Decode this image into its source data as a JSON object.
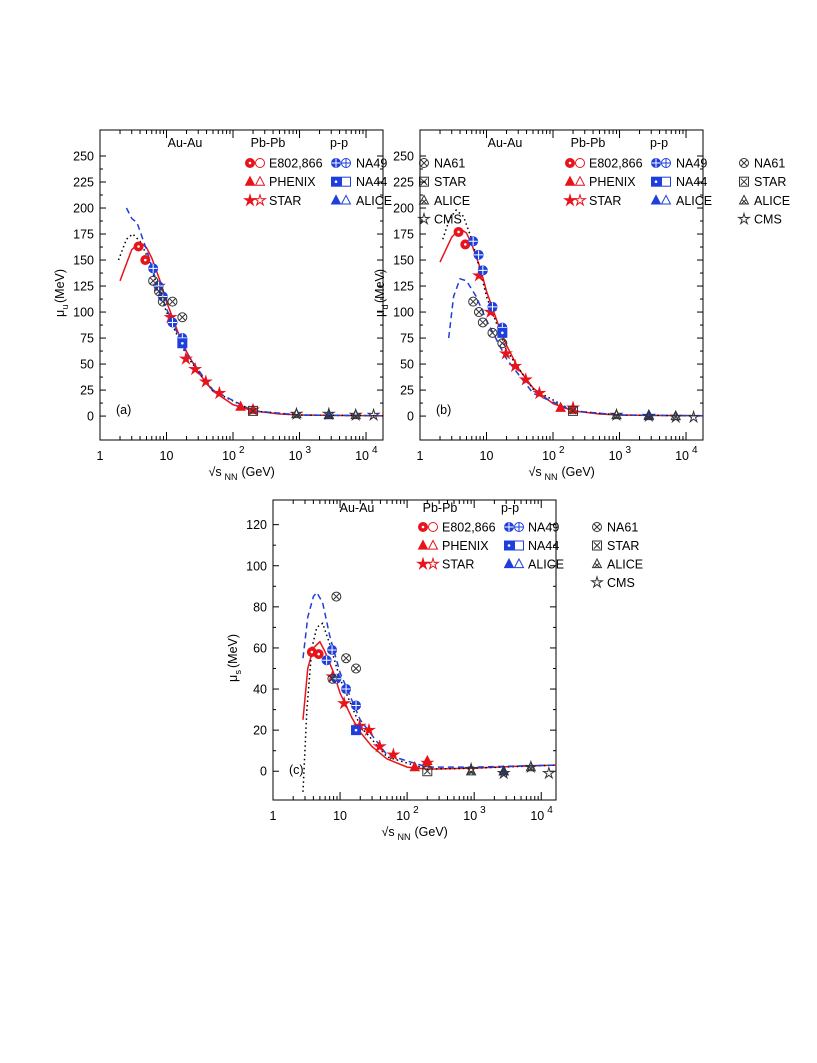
{
  "chart_data": [
    {
      "type": "scatter",
      "panel_label": "(a)",
      "log_x": true,
      "x_label": {
        "symbol": "√s",
        "sub": "NN",
        "unit": "(GeV)"
      },
      "y_label": {
        "symbol": "μ",
        "sub": "u",
        "unit": "(MeV)"
      },
      "xlim": [
        1,
        18000
      ],
      "ylim": [
        -23,
        275
      ],
      "xticks": [
        1,
        10,
        {
          "value": 100,
          "label": "10",
          "exponent": "2"
        },
        {
          "value": 1000,
          "label": "10",
          "exponent": "3"
        },
        {
          "value": 10000,
          "label": "10",
          "exponent": "4"
        }
      ],
      "yticks": [
        0,
        25,
        50,
        75,
        100,
        125,
        150,
        175,
        200,
        225,
        250
      ],
      "legend_groups": [
        {
          "title": "Au-Au",
          "series": [
            {
              "name": "E802,866",
              "color": "#e8141b",
              "marker": "circle",
              "x": [
                3.8,
                4.8
              ],
              "values": [
                163,
                150
              ]
            },
            {
              "name": "PHENIX",
              "color": "#e8141b",
              "marker": "triangle",
              "x": [
                130,
                200
              ],
              "values": [
                9,
                6
              ]
            },
            {
              "name": "STAR",
              "color": "#e8141b",
              "marker": "star",
              "x": [
                7.7,
                11.5,
                19.6,
                27,
                39,
                62.4,
                200
              ],
              "values": [
                125,
                95,
                55,
                45,
                33,
                22,
                6
              ]
            }
          ]
        },
        {
          "title": "Pb-Pb",
          "series": [
            {
              "name": "NA49",
              "color": "#1f3fdc",
              "marker": "circleplus",
              "x": [
                6.3,
                7.6,
                8.8,
                12.3,
                17.3
              ],
              "values": [
                142,
                125,
                115,
                90,
                75
              ]
            },
            {
              "name": "NA44",
              "color": "#1f3fdc",
              "marker": "square",
              "x": [
                17.3
              ],
              "values": [
                70
              ]
            },
            {
              "name": "ALICE",
              "color": "#1f3fdc",
              "marker": "triangle",
              "x": [
                2760
              ],
              "values": [
                1
              ]
            }
          ]
        },
        {
          "title": "p-p",
          "series": [
            {
              "name": "NA61",
              "color": "#333333",
              "marker": "circlex",
              "x": [
                6.3,
                7.7,
                8.8,
                12.3,
                17.3
              ],
              "values": [
                130,
                120,
                110,
                110,
                95
              ]
            },
            {
              "name": "STAR",
              "color": "#333333",
              "marker": "squarex",
              "x": [
                200
              ],
              "values": [
                5
              ]
            },
            {
              "name": "ALICE",
              "color": "#333333",
              "marker": "trianglex",
              "x": [
                900,
                2760,
                7000
              ],
              "values": [
                2,
                1,
                1
              ]
            },
            {
              "name": "CMS",
              "color": "#333333",
              "marker": "star",
              "x": [
                900,
                2760,
                7000,
                13000
              ],
              "values": [
                2,
                2,
                1,
                1
              ]
            }
          ]
        }
      ],
      "curves": [
        {
          "color": "#e8141b",
          "dash": "solid",
          "x": [
            2,
            3,
            4,
            5,
            6,
            8,
            10,
            15,
            20,
            30,
            50,
            100,
            200,
            500,
            1000,
            5000,
            18000
          ],
          "values": [
            130,
            160,
            167,
            162,
            152,
            130,
            110,
            80,
            62,
            42,
            24,
            11,
            5,
            2,
            1,
            0.5,
            0.3
          ]
        },
        {
          "color": "#000000",
          "dash": "dotted",
          "x": [
            1.9,
            2.5,
            3.1,
            4,
            5,
            7,
            10,
            20,
            50,
            200,
            1000,
            18000
          ],
          "values": [
            150,
            170,
            175,
            168,
            155,
            128,
            100,
            58,
            24,
            5,
            1,
            0.3
          ]
        },
        {
          "color": "#1f3fdc",
          "dash": "dashed",
          "x": [
            2.5,
            3,
            3.6,
            5,
            7,
            10,
            20,
            50,
            200,
            1000,
            18000
          ],
          "values": [
            200,
            190,
            186,
            160,
            130,
            103,
            60,
            25,
            5,
            1,
            0.3
          ]
        }
      ]
    },
    {
      "type": "scatter",
      "panel_label": "(b)",
      "log_x": true,
      "x_label": {
        "symbol": "√s",
        "sub": "NN",
        "unit": "(GeV)"
      },
      "y_label": {
        "symbol": "μ",
        "sub": "d",
        "unit": "(MeV)"
      },
      "xlim": [
        1,
        18000
      ],
      "ylim": [
        -23,
        275
      ],
      "xticks": [
        1,
        10,
        {
          "value": 100,
          "label": "10",
          "exponent": "2"
        },
        {
          "value": 1000,
          "label": "10",
          "exponent": "3"
        },
        {
          "value": 10000,
          "label": "10",
          "exponent": "4"
        }
      ],
      "yticks": [
        0,
        25,
        50,
        75,
        100,
        125,
        150,
        175,
        200,
        225,
        250
      ],
      "legend_groups": [
        {
          "title": "Au-Au",
          "series": [
            {
              "name": "E802,866",
              "color": "#e8141b",
              "marker": "circle",
              "x": [
                3.8,
                4.8
              ],
              "values": [
                177,
                165
              ]
            },
            {
              "name": "PHENIX",
              "color": "#e8141b",
              "marker": "triangle",
              "x": [
                130,
                200
              ],
              "values": [
                8,
                6
              ]
            },
            {
              "name": "STAR",
              "color": "#e8141b",
              "marker": "star",
              "x": [
                7.7,
                11.5,
                19.6,
                27,
                39,
                62.4,
                200
              ],
              "values": [
                135,
                100,
                60,
                48,
                35,
                22,
                8
              ]
            }
          ]
        },
        {
          "title": "Pb-Pb",
          "series": [
            {
              "name": "NA49",
              "color": "#1f3fdc",
              "marker": "circleplus",
              "x": [
                6.3,
                7.6,
                8.8,
                12.3,
                17.3
              ],
              "values": [
                168,
                155,
                140,
                105,
                85
              ]
            },
            {
              "name": "NA44",
              "color": "#1f3fdc",
              "marker": "square",
              "x": [
                17.3
              ],
              "values": [
                80
              ]
            },
            {
              "name": "ALICE",
              "color": "#1f3fdc",
              "marker": "triangle",
              "x": [
                2760
              ],
              "values": [
                1
              ]
            }
          ]
        },
        {
          "title": "p-p",
          "series": [
            {
              "name": "NA61",
              "color": "#333333",
              "marker": "circlex",
              "x": [
                6.3,
                7.7,
                8.8,
                12.3,
                17.3
              ],
              "values": [
                110,
                100,
                90,
                80,
                70
              ]
            },
            {
              "name": "STAR",
              "color": "#333333",
              "marker": "squarex",
              "x": [
                200
              ],
              "values": [
                5
              ]
            },
            {
              "name": "ALICE",
              "color": "#333333",
              "marker": "trianglex",
              "x": [
                900,
                2760,
                7000
              ],
              "values": [
                1,
                0,
                0
              ]
            },
            {
              "name": "CMS",
              "color": "#333333",
              "marker": "star",
              "x": [
                900,
                2760,
                7000,
                13000
              ],
              "values": [
                1,
                0,
                -1,
                -1
              ]
            }
          ]
        }
      ],
      "curves": [
        {
          "color": "#e8141b",
          "dash": "solid",
          "x": [
            2,
            3,
            4,
            5,
            6,
            8,
            10,
            15,
            20,
            30,
            50,
            100,
            200,
            500,
            1000,
            5000,
            18000
          ],
          "values": [
            148,
            172,
            180,
            176,
            165,
            143,
            120,
            88,
            68,
            46,
            27,
            12,
            5,
            2,
            1,
            0.5,
            0.3
          ]
        },
        {
          "color": "#000000",
          "dash": "dotted",
          "x": [
            2.2,
            2.8,
            3.5,
            4.5,
            6,
            8,
            10,
            20,
            50,
            200,
            1000,
            18000
          ],
          "values": [
            170,
            190,
            198,
            192,
            170,
            140,
            115,
            63,
            26,
            5,
            1,
            0.3
          ]
        },
        {
          "color": "#1f3fdc",
          "dash": "dashed",
          "x": [
            2.7,
            3.2,
            4,
            5,
            7,
            10,
            20,
            50,
            200,
            1000,
            18000
          ],
          "values": [
            75,
            115,
            132,
            130,
            115,
            92,
            55,
            22,
            5,
            1,
            0.3
          ]
        }
      ]
    },
    {
      "type": "scatter",
      "panel_label": "(c)",
      "log_x": true,
      "x_label": {
        "symbol": "√s",
        "sub": "NN",
        "unit": "(GeV)"
      },
      "y_label": {
        "symbol": "μ",
        "sub": "s",
        "unit": "(MeV)"
      },
      "xlim": [
        1,
        16600
      ],
      "ylim": [
        -14,
        132
      ],
      "xticks": [
        1,
        10,
        {
          "value": 100,
          "label": "10",
          "exponent": "2"
        },
        {
          "value": 1000,
          "label": "10",
          "exponent": "3"
        },
        {
          "value": 10000,
          "label": "10",
          "exponent": "4"
        }
      ],
      "yticks": [
        0,
        20,
        40,
        60,
        80,
        100,
        120
      ],
      "legend_groups": [
        {
          "title": "Au-Au",
          "series": [
            {
              "name": "E802,866",
              "color": "#e8141b",
              "marker": "circle",
              "x": [
                3.8,
                4.8
              ],
              "values": [
                58,
                57
              ]
            },
            {
              "name": "PHENIX",
              "color": "#e8141b",
              "marker": "triangle",
              "x": [
                130,
                200
              ],
              "values": [
                2,
                5
              ]
            },
            {
              "name": "STAR",
              "color": "#e8141b",
              "marker": "star",
              "x": [
                7.7,
                11.5,
                19.6,
                27,
                39,
                62.4,
                200
              ],
              "values": [
                46,
                33,
                22,
                20,
                12,
                8,
                4
              ]
            }
          ]
        },
        {
          "title": "Pb-Pb",
          "series": [
            {
              "name": "NA49",
              "color": "#1f3fdc",
              "marker": "circleplus",
              "x": [
                6.3,
                7.6,
                8.8,
                12.3,
                17.3
              ],
              "values": [
                54,
                59,
                45,
                40,
                32
              ]
            },
            {
              "name": "NA44",
              "color": "#1f3fdc",
              "marker": "square",
              "x": [
                17.3
              ],
              "values": [
                20
              ]
            },
            {
              "name": "ALICE",
              "color": "#1f3fdc",
              "marker": "triangle",
              "x": [
                2760
              ],
              "values": [
                0
              ]
            }
          ]
        },
        {
          "title": "p-p",
          "series": [
            {
              "name": "NA61",
              "color": "#333333",
              "marker": "circlex",
              "x": [
                7.7,
                8.8,
                12.3,
                17.3
              ],
              "values": [
                45,
                85,
                55,
                50
              ]
            },
            {
              "name": "STAR",
              "color": "#333333",
              "marker": "squarex",
              "x": [
                200
              ],
              "values": [
                0
              ]
            },
            {
              "name": "ALICE",
              "color": "#333333",
              "marker": "trianglex",
              "x": [
                900,
                2760,
                7000
              ],
              "values": [
                0,
                0,
                2
              ]
            },
            {
              "name": "CMS",
              "color": "#333333",
              "marker": "star",
              "x": [
                900,
                2760,
                7000,
                13000
              ],
              "values": [
                1,
                -1,
                2,
                -1
              ]
            }
          ]
        }
      ],
      "curves": [
        {
          "color": "#e8141b",
          "dash": "solid",
          "x": [
            2.8,
            3.3,
            4,
            5,
            6,
            8,
            10,
            15,
            20,
            30,
            50,
            100,
            200,
            1000,
            5000,
            16600
          ],
          "values": [
            25,
            50,
            60,
            63,
            58,
            48,
            38,
            26,
            19,
            12,
            6,
            2,
            1,
            1.5,
            2.5,
            3
          ]
        },
        {
          "color": "#000000",
          "dash": "dotted",
          "x": [
            2.8,
            3.2,
            3.8,
            4.5,
            5.5,
            7,
            10,
            20,
            50,
            200,
            1000,
            16600
          ],
          "values": [
            -10,
            30,
            60,
            70,
            72,
            62,
            45,
            22,
            7,
            1,
            1.5,
            3
          ]
        },
        {
          "color": "#1f3fdc",
          "dash": "dashed",
          "x": [
            2.8,
            3.3,
            4,
            4.5,
            5.5,
            7,
            10,
            20,
            50,
            200,
            1000,
            16600
          ],
          "values": [
            55,
            75,
            85,
            87,
            82,
            66,
            48,
            25,
            8,
            2,
            2,
            3
          ]
        }
      ]
    }
  ]
}
